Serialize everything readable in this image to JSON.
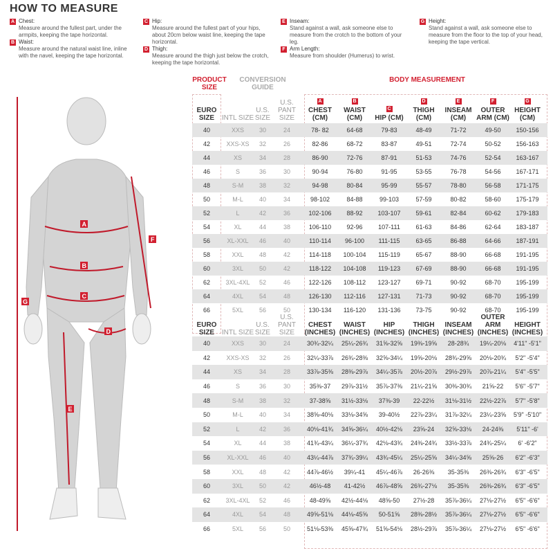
{
  "title": "HOW TO MEASURE",
  "instructions": [
    {
      "letter": "A",
      "label": "Chest:",
      "text": "Measure around the fullest part, under the armpits, keeping the tape horizontal."
    },
    {
      "letter": "B",
      "label": "Waist:",
      "text": "Measure around the natural waist line, inline with the navel, keeping the tape horizontal."
    },
    {
      "letter": "C",
      "label": "Hip:",
      "text": "Measure around the fullest part of your hips, about 20cm below waist line, keeping the tape horizontal."
    },
    {
      "letter": "D",
      "label": "Thigh:",
      "text": "Measure around the thigh just below the crotch, keeping the tape horizontal."
    },
    {
      "letter": "E",
      "label": "Inseam:",
      "text": "Stand against a wall, ask someone else to measure from the crotch to the bottom of your leg."
    },
    {
      "letter": "F",
      "label": "Arm Length:",
      "text": "Measure from shoulder (Humerus) to wrist."
    },
    {
      "letter": "G",
      "label": "Height:",
      "text": "Stand against a wall, ask someone else to measure from the floor to the top of your head, keeping the tape vertical."
    }
  ],
  "accent": "#d22030",
  "table": {
    "product_size": "PRODUCT SIZE",
    "conversion_guide": "CONVERSION GUIDE",
    "body_measurement": "BODY MEASUREMENT",
    "conv_headers": [
      "EURO SIZE",
      "INTL SIZE",
      "U.S. SIZE",
      "U.S. PANT SIZE"
    ],
    "cm_headers": [
      {
        "l": "A",
        "t": "CHEST (CM)"
      },
      {
        "l": "B",
        "t": "WAIST (CM)"
      },
      {
        "l": "C",
        "t": "HIP (CM)"
      },
      {
        "l": "D",
        "t": "THIGH (CM)"
      },
      {
        "l": "E",
        "t": "INSEAM (CM)"
      },
      {
        "l": "F",
        "t": "OUTER ARM (CM)"
      },
      {
        "l": "G",
        "t": "HEIGHT (CM)"
      }
    ],
    "in_headers": [
      "CHEST (INCHES)",
      "WAIST (INCHES)",
      "HIP (INCHES)",
      "THIGH (INCHES)",
      "INSEAM (INCHES)",
      "OUTER ARM (INCHES)",
      "HEIGHT (INCHES)"
    ],
    "conversion": [
      [
        "40",
        "XXS",
        "30",
        "24"
      ],
      [
        "42",
        "XXS-XS",
        "32",
        "26"
      ],
      [
        "44",
        "XS",
        "34",
        "28"
      ],
      [
        "46",
        "S",
        "36",
        "30"
      ],
      [
        "48",
        "S-M",
        "38",
        "32"
      ],
      [
        "50",
        "M-L",
        "40",
        "34"
      ],
      [
        "52",
        "L",
        "42",
        "36"
      ],
      [
        "54",
        "XL",
        "44",
        "38"
      ],
      [
        "56",
        "XL-XXL",
        "46",
        "40"
      ],
      [
        "58",
        "XXL",
        "48",
        "42"
      ],
      [
        "60",
        "3XL",
        "50",
        "42"
      ],
      [
        "62",
        "3XL-4XL",
        "52",
        "46"
      ],
      [
        "64",
        "4XL",
        "54",
        "48"
      ],
      [
        "66",
        "5XL",
        "56",
        "50"
      ]
    ],
    "cm_rows": [
      [
        "78- 82",
        "64-68",
        "79-83",
        "48-49",
        "71-72",
        "49-50",
        "150-156"
      ],
      [
        "82-86",
        "68-72",
        "83-87",
        "49-51",
        "72-74",
        "50-52",
        "156-163"
      ],
      [
        "86-90",
        "72-76",
        "87-91",
        "51-53",
        "74-76",
        "52-54",
        "163-167"
      ],
      [
        "90-94",
        "76-80",
        "91-95",
        "53-55",
        "76-78",
        "54-56",
        "167-171"
      ],
      [
        "94-98",
        "80-84",
        "95-99",
        "55-57",
        "78-80",
        "56-58",
        "171-175"
      ],
      [
        "98-102",
        "84-88",
        "99-103",
        "57-59",
        "80-82",
        "58-60",
        "175-179"
      ],
      [
        "102-106",
        "88-92",
        "103-107",
        "59-61",
        "82-84",
        "60-62",
        "179-183"
      ],
      [
        "106-110",
        "92-96",
        "107-111",
        "61-63",
        "84-86",
        "62-64",
        "183-187"
      ],
      [
        "110-114",
        "96-100",
        "111-115",
        "63-65",
        "86-88",
        "64-66",
        "187-191"
      ],
      [
        "114-118",
        "100-104",
        "115-119",
        "65-67",
        "88-90",
        "66-68",
        "191-195"
      ],
      [
        "118-122",
        "104-108",
        "119-123",
        "67-69",
        "88-90",
        "66-68",
        "191-195"
      ],
      [
        "122-126",
        "108-112",
        "123-127",
        "69-71",
        "90-92",
        "68-70",
        "195-199"
      ],
      [
        "126-130",
        "112-116",
        "127-131",
        "71-73",
        "90-92",
        "68-70",
        "195-199"
      ],
      [
        "130-134",
        "116-120",
        "131-136",
        "73-75",
        "90-92",
        "68-70",
        "195-199"
      ]
    ],
    "in_rows": [
      [
        "30¾-32¼",
        "25¼-26¾",
        "31⅝-32⅝",
        "19⅜-19⅝",
        "28-28¾",
        "19¼-20⅛",
        "4'11\" -5'1\""
      ],
      [
        "32¼-33⅞",
        "26¾-28⅜",
        "32⅝-34¼",
        "19⅝-20⅛",
        "28¾-29⅝",
        "20⅛-20¾",
        "5'2\" -5'4\""
      ],
      [
        "33⅞-35⅜",
        "28⅜-29⅞",
        "34¼-35⅞",
        "20½-20⅞",
        "29½-29⅞",
        "20⅞-21¼",
        "5'4\" -5'5\""
      ],
      [
        "35⅜-37",
        "29⅞-31½",
        "35⅞-37⅜",
        "21¼-21⅝",
        "30⅜-30¾",
        "21⅝-22",
        "5'6\" -5'7\""
      ],
      [
        "37-38⅝",
        "31½-33⅛",
        "37⅜-39",
        "22-22½",
        "31⅛-31½",
        "22½-22⅞",
        "5'7\" -5'8\""
      ],
      [
        "38⅝-40⅛",
        "33⅛-34⅝",
        "39-40½",
        "22⅞-23¼",
        "31⅞-32¼",
        "23¼-23⅝",
        "5'9\" -5'10\""
      ],
      [
        "40⅛-41¾",
        "34⅝-36¼",
        "40½-42⅛",
        "23⅝-24",
        "32⅝-33⅛",
        "24-24⅜",
        "5'11\" -6'"
      ],
      [
        "41¾-43¼",
        "36¼-37¾",
        "42⅛-43¾",
        "24⅜-24¾",
        "33½-33⅞",
        "24¾-25¼",
        "6' -6'2\""
      ],
      [
        "43¼-44⅞",
        "37¾-39¼",
        "43¾-45¼",
        "25¼-25⅝",
        "34¼-34⅝",
        "25⅝-26",
        "6'2\" -6'3\""
      ],
      [
        "44⅞-46½",
        "39¼-41",
        "45¼-46⅞",
        "26-26⅜",
        "35-35⅜",
        "26⅜-26¾",
        "6'3\" -6'5\""
      ],
      [
        "46½-48",
        "41-42½",
        "46⅞-48⅝",
        "26¾-27⅛",
        "35-35⅜",
        "26⅜-26¾",
        "6'3\" -6'5\""
      ],
      [
        "48-49⅝",
        "42½-44⅛",
        "48⅝-50",
        "27½-28",
        "35⅞-36¼",
        "27⅛-27½",
        "6'5\" -6'6\""
      ],
      [
        "49⅝-51⅛",
        "44⅛-45⅝",
        "50-51⅝",
        "28⅜-28½",
        "35⅞-36¼",
        "27⅛-27½",
        "6'5\" -6'6\""
      ],
      [
        "51⅛-53⅜",
        "45⅝-47¾",
        "51⅝-54⅛",
        "28½-29⅞",
        "35⅞-36¼",
        "27⅛-27½",
        "6'5\" -6'6\""
      ]
    ]
  }
}
